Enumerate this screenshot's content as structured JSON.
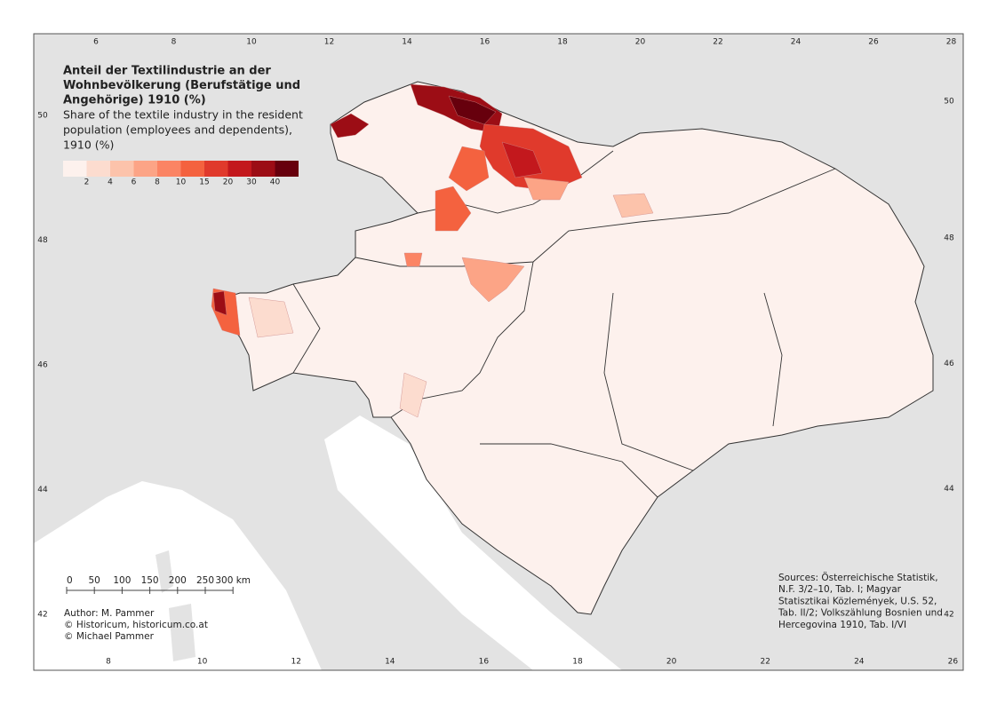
{
  "title": {
    "de": [
      "Anteil der Textilindustrie an der",
      "Wohnbevölkerung (Berufstätige und",
      "Angehörige) 1910 (%)"
    ],
    "en": [
      "Share of the textile industry in the resident",
      "population (employees and dependents),",
      "1910 (%)"
    ]
  },
  "legend": {
    "colors": [
      "#fdf1ed",
      "#fcdccf",
      "#fcc3ab",
      "#fca486",
      "#fb8464",
      "#f4623f",
      "#e03a2c",
      "#c3181d",
      "#9c0d15",
      "#67000d"
    ],
    "labels": [
      "2",
      "4",
      "6",
      "8",
      "10",
      "15",
      "20",
      "30",
      "40"
    ]
  },
  "coordinates": {
    "top": [
      6,
      8,
      10,
      12,
      14,
      16,
      18,
      20,
      22,
      24,
      26,
      28
    ],
    "bottom": [
      8,
      10,
      12,
      14,
      16,
      18,
      20,
      22,
      24,
      26
    ],
    "left": [
      50,
      48,
      46,
      44,
      42
    ],
    "right": [
      50,
      48,
      46,
      44,
      42
    ]
  },
  "scale_bar": [
    "0",
    "50",
    "100",
    "150",
    "200",
    "250",
    "300 km"
  ],
  "author": [
    "Author: M. Pammer",
    "© Historicum, historicum.co.at",
    "© Michael Pammer"
  ],
  "sources": [
    "Sources: Österreichische Statistik,",
    "N.F. 3/2–10, Tab. I; Magyar",
    "Statisztikai Közlemények, U.S. 52,",
    "Tab. II/2; Volkszählung Bosnien und",
    "Hercegovina 1910, Tab. I/VI"
  ]
}
